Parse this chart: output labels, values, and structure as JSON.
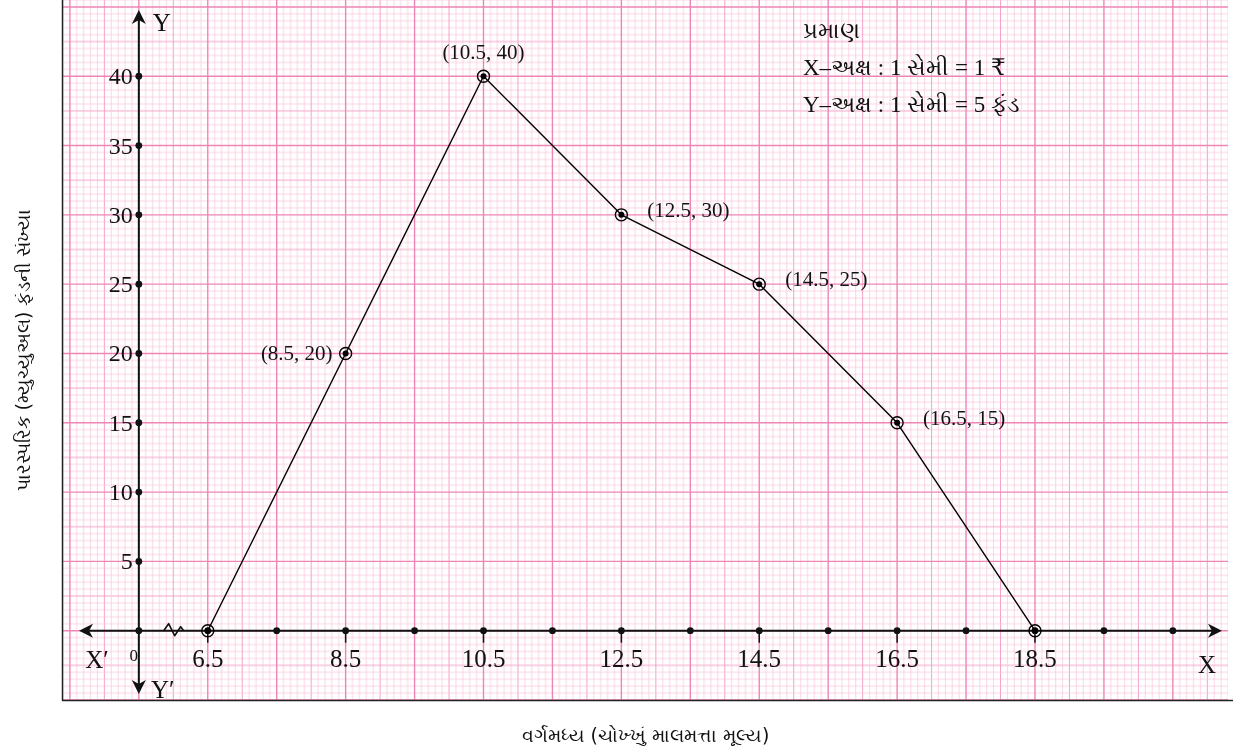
{
  "chart_data": {
    "type": "line",
    "xlabel": "વર્ગમધ્ય (ચોખ્ખું માલમત્તા મૂલ્ય)",
    "ylabel": "પારસ્પરિક (મ્યુચ્યુઅલ) ફંડની સંખ્યા",
    "x": [
      6.5,
      8.5,
      10.5,
      12.5,
      14.5,
      16.5,
      18.5
    ],
    "series": [
      {
        "color": "#000000",
        "values": [
          0,
          20,
          40,
          30,
          25,
          15,
          0
        ]
      }
    ],
    "xlim": [
      4.4,
      21.3
    ],
    "ylim": [
      -5,
      45.5
    ],
    "xticks": [
      {
        "value": 5.5,
        "label": null
      },
      6.5,
      {
        "value": 7.5,
        "label": null
      },
      8.5,
      {
        "value": 9.5,
        "label": null
      },
      10.5,
      {
        "value": 11.5,
        "label": null
      },
      12.5,
      {
        "value": 13.5,
        "label": null
      },
      14.5,
      {
        "value": 15.5,
        "label": null
      },
      16.5,
      {
        "value": 17.5,
        "label": null
      },
      18.5,
      {
        "value": 19.5,
        "label": null
      },
      {
        "value": 20.5,
        "label": null
      }
    ],
    "yticks": [
      {
        "value": 0,
        "label": null
      },
      5,
      10,
      15,
      20,
      25,
      30,
      35,
      40
    ],
    "grid": true,
    "marker": "circle",
    "line_style": "solid",
    "annotations": [
      {
        "text": "(8.5, 20)",
        "x": 8.5,
        "y": 20
      },
      {
        "text": "(10.5, 40)",
        "x": 10.5,
        "y": 40
      },
      {
        "text": "(12.5, 30)",
        "x": 12.5,
        "y": 30
      },
      {
        "text": "(14.5, 25)",
        "x": 14.5,
        "y": 25
      },
      {
        "text": "(16.5, 15)",
        "x": 16.5,
        "y": 15
      },
      "0",
      "X′",
      "X",
      "Y",
      "Y′",
      "પ્રમાણ",
      "X–અક્ષ : 1 સેમી = 1 ₹",
      "Y–અક્ષ : 1 સેમી = 5 ફંડ"
    ]
  }
}
